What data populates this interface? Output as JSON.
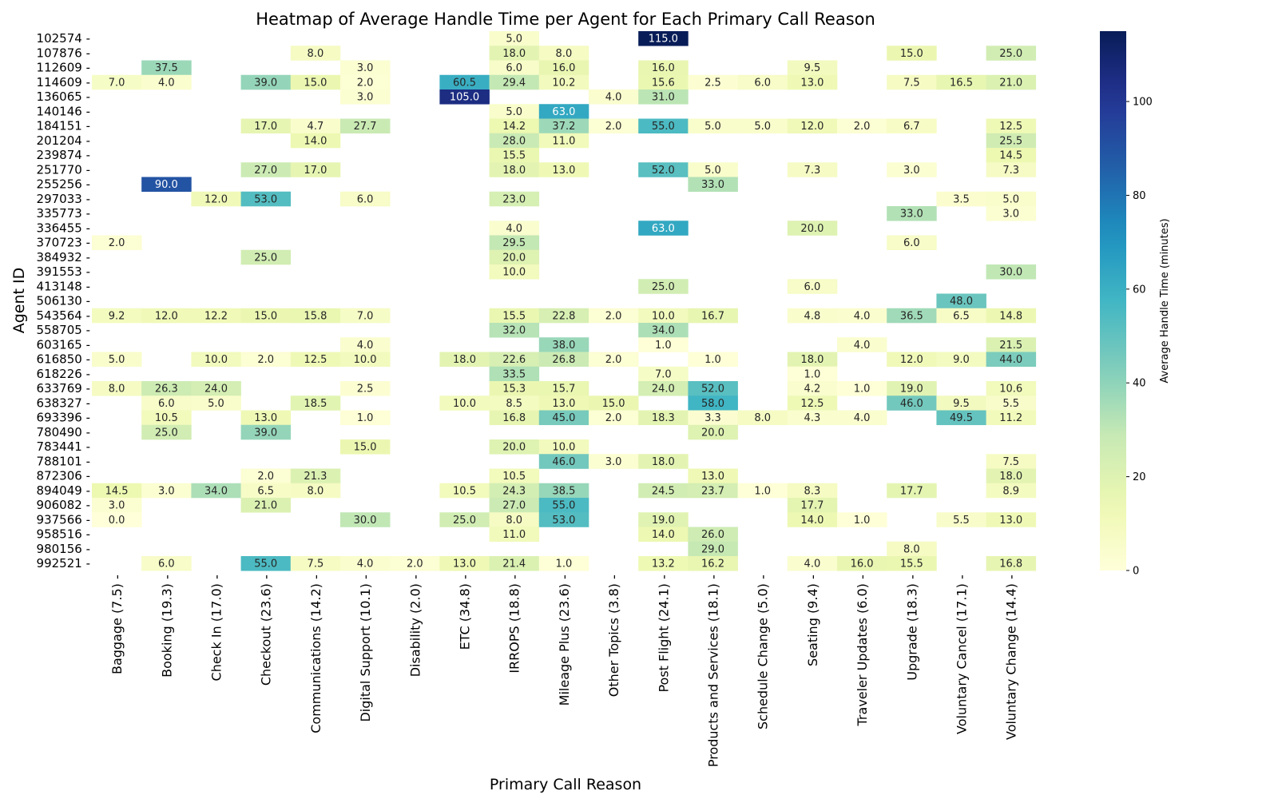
{
  "chart_data": {
    "type": "heatmap",
    "title": "Heatmap of Average Handle Time per Agent for Each Primary Call Reason",
    "xlabel": "Primary Call Reason",
    "ylabel": "Agent ID",
    "colorbar_label": "Average Handle Time (minutes)",
    "colormap": "YlGnBu",
    "value_range": [
      0,
      115
    ],
    "colorbar_ticks": [
      "0",
      "20",
      "40",
      "60",
      "80",
      "100"
    ],
    "columns": [
      "Baggage (7.5)",
      "Booking (19.3)",
      "Check In (17.0)",
      "Checkout (23.6)",
      "Communications (14.2)",
      "Digital Support (10.1)",
      "Disability (2.0)",
      "ETC (34.8)",
      "IRROPS (18.8)",
      "Mileage Plus (23.6)",
      "Other Topics (3.8)",
      "Post Flight (24.1)",
      "Products and Services (18.1)",
      "Schedule Change (5.0)",
      "Seating (9.4)",
      "Traveler Updates (6.0)",
      "Upgrade (18.3)",
      "Voluntary Cancel (17.1)",
      "Voluntary Change (14.4)"
    ],
    "rows": [
      "102574",
      "107876",
      "112609",
      "114609",
      "136065",
      "140146",
      "184151",
      "201204",
      "239874",
      "251770",
      "255256",
      "297033",
      "335773",
      "336455",
      "370723",
      "384932",
      "391553",
      "413148",
      "506130",
      "543564",
      "558705",
      "603165",
      "616850",
      "618226",
      "633769",
      "638327",
      "693396",
      "780490",
      "783441",
      "788101",
      "872306",
      "894049",
      "906082",
      "937566",
      "958516",
      "980156",
      "992521"
    ],
    "values": [
      [
        null,
        null,
        null,
        null,
        null,
        null,
        null,
        null,
        5.0,
        null,
        null,
        115.0,
        null,
        null,
        null,
        null,
        null,
        null,
        null
      ],
      [
        null,
        null,
        null,
        null,
        8.0,
        null,
        null,
        null,
        18.0,
        8.0,
        null,
        null,
        null,
        null,
        null,
        null,
        15.0,
        null,
        25.0
      ],
      [
        null,
        37.5,
        null,
        null,
        null,
        3.0,
        null,
        null,
        6.0,
        16.0,
        null,
        16.0,
        null,
        null,
        9.5,
        null,
        null,
        null,
        null
      ],
      [
        7.0,
        4.0,
        null,
        39.0,
        15.0,
        2.0,
        null,
        60.5,
        29.4,
        10.2,
        null,
        15.6,
        2.5,
        6.0,
        13.0,
        null,
        7.5,
        16.5,
        21.0
      ],
      [
        null,
        null,
        null,
        null,
        null,
        3.0,
        null,
        105.0,
        null,
        null,
        4.0,
        31.0,
        null,
        null,
        null,
        null,
        null,
        null,
        null
      ],
      [
        null,
        null,
        null,
        null,
        null,
        null,
        null,
        null,
        5.0,
        63.0,
        null,
        null,
        null,
        null,
        null,
        null,
        null,
        null,
        null
      ],
      [
        null,
        null,
        null,
        17.0,
        4.7,
        27.7,
        null,
        null,
        14.2,
        37.2,
        2.0,
        55.0,
        5.0,
        5.0,
        12.0,
        2.0,
        6.7,
        null,
        12.5
      ],
      [
        null,
        null,
        null,
        null,
        14.0,
        null,
        null,
        null,
        28.0,
        11.0,
        null,
        null,
        null,
        null,
        null,
        null,
        null,
        null,
        25.5
      ],
      [
        null,
        null,
        null,
        null,
        null,
        null,
        null,
        null,
        15.5,
        null,
        null,
        null,
        null,
        null,
        null,
        null,
        null,
        null,
        14.5
      ],
      [
        null,
        null,
        null,
        27.0,
        17.0,
        null,
        null,
        null,
        18.0,
        13.0,
        null,
        52.0,
        5.0,
        null,
        7.3,
        null,
        3.0,
        null,
        7.3
      ],
      [
        null,
        90.0,
        null,
        null,
        null,
        null,
        null,
        null,
        null,
        null,
        null,
        null,
        33.0,
        null,
        null,
        null,
        null,
        null,
        null
      ],
      [
        null,
        null,
        12.0,
        53.0,
        null,
        6.0,
        null,
        null,
        23.0,
        null,
        null,
        null,
        null,
        null,
        null,
        null,
        null,
        3.5,
        5.0
      ],
      [
        null,
        null,
        null,
        null,
        null,
        null,
        null,
        null,
        null,
        null,
        null,
        null,
        null,
        null,
        null,
        null,
        33.0,
        null,
        3.0
      ],
      [
        null,
        null,
        null,
        null,
        null,
        null,
        null,
        null,
        4.0,
        null,
        null,
        63.0,
        null,
        null,
        20.0,
        null,
        null,
        null,
        null
      ],
      [
        2.0,
        null,
        null,
        null,
        null,
        null,
        null,
        null,
        29.5,
        null,
        null,
        null,
        null,
        null,
        null,
        null,
        6.0,
        null,
        null
      ],
      [
        null,
        null,
        null,
        25.0,
        null,
        null,
        null,
        null,
        20.0,
        null,
        null,
        null,
        null,
        null,
        null,
        null,
        null,
        null,
        null
      ],
      [
        null,
        null,
        null,
        null,
        null,
        null,
        null,
        null,
        10.0,
        null,
        null,
        null,
        null,
        null,
        null,
        null,
        null,
        null,
        30.0
      ],
      [
        null,
        null,
        null,
        null,
        null,
        null,
        null,
        null,
        null,
        null,
        null,
        25.0,
        null,
        null,
        6.0,
        null,
        null,
        null,
        null
      ],
      [
        null,
        null,
        null,
        null,
        null,
        null,
        null,
        null,
        null,
        null,
        null,
        null,
        null,
        null,
        null,
        null,
        null,
        48.0,
        null
      ],
      [
        9.2,
        12.0,
        12.2,
        15.0,
        15.8,
        7.0,
        null,
        null,
        15.5,
        22.8,
        2.0,
        10.0,
        16.7,
        null,
        4.8,
        4.0,
        36.5,
        6.5,
        14.8
      ],
      [
        null,
        null,
        null,
        null,
        null,
        null,
        null,
        null,
        32.0,
        null,
        null,
        34.0,
        null,
        null,
        null,
        null,
        null,
        null,
        null
      ],
      [
        null,
        null,
        null,
        null,
        null,
        4.0,
        null,
        null,
        null,
        38.0,
        null,
        1.0,
        null,
        null,
        null,
        4.0,
        null,
        null,
        21.5
      ],
      [
        5.0,
        null,
        10.0,
        2.0,
        12.5,
        10.0,
        null,
        18.0,
        22.6,
        26.8,
        2.0,
        null,
        1.0,
        null,
        18.0,
        null,
        12.0,
        9.0,
        44.0
      ],
      [
        null,
        null,
        null,
        null,
        null,
        null,
        null,
        null,
        33.5,
        null,
        null,
        7.0,
        null,
        null,
        1.0,
        null,
        null,
        null,
        null
      ],
      [
        8.0,
        26.3,
        24.0,
        null,
        null,
        2.5,
        null,
        null,
        15.3,
        15.7,
        null,
        24.0,
        52.0,
        null,
        4.2,
        1.0,
        19.0,
        null,
        10.6
      ],
      [
        null,
        6.0,
        5.0,
        null,
        18.5,
        null,
        null,
        10.0,
        8.5,
        13.0,
        15.0,
        null,
        58.0,
        null,
        12.5,
        null,
        46.0,
        9.5,
        5.5
      ],
      [
        null,
        10.5,
        null,
        13.0,
        null,
        1.0,
        null,
        null,
        16.8,
        45.0,
        2.0,
        18.3,
        3.3,
        8.0,
        4.3,
        4.0,
        null,
        49.5,
        11.2
      ],
      [
        null,
        25.0,
        null,
        39.0,
        null,
        null,
        null,
        null,
        null,
        null,
        null,
        null,
        20.0,
        null,
        null,
        null,
        null,
        null,
        null
      ],
      [
        null,
        null,
        null,
        null,
        null,
        15.0,
        null,
        null,
        20.0,
        10.0,
        null,
        null,
        null,
        null,
        null,
        null,
        null,
        null,
        null
      ],
      [
        null,
        null,
        null,
        null,
        null,
        null,
        null,
        null,
        null,
        46.0,
        3.0,
        18.0,
        null,
        null,
        null,
        null,
        null,
        null,
        7.5
      ],
      [
        null,
        null,
        null,
        2.0,
        21.3,
        null,
        null,
        null,
        10.5,
        null,
        null,
        null,
        13.0,
        null,
        null,
        null,
        null,
        null,
        18.0
      ],
      [
        14.5,
        3.0,
        34.0,
        6.5,
        8.0,
        null,
        null,
        10.5,
        24.3,
        38.5,
        null,
        24.5,
        23.7,
        1.0,
        8.3,
        null,
        17.7,
        null,
        8.9
      ],
      [
        3.0,
        null,
        null,
        21.0,
        null,
        null,
        null,
        null,
        27.0,
        55.0,
        null,
        null,
        null,
        null,
        17.7,
        null,
        null,
        null,
        null
      ],
      [
        0.0,
        null,
        null,
        null,
        null,
        30.0,
        null,
        25.0,
        8.0,
        53.0,
        null,
        19.0,
        null,
        null,
        14.0,
        1.0,
        null,
        5.5,
        13.0
      ],
      [
        null,
        null,
        null,
        null,
        null,
        null,
        null,
        null,
        11.0,
        null,
        null,
        14.0,
        26.0,
        null,
        null,
        null,
        null,
        null,
        null
      ],
      [
        null,
        null,
        null,
        null,
        null,
        null,
        null,
        null,
        null,
        null,
        null,
        null,
        29.0,
        null,
        null,
        null,
        8.0,
        null,
        null
      ],
      [
        null,
        6.0,
        null,
        55.0,
        7.5,
        4.0,
        2.0,
        13.0,
        21.4,
        1.0,
        null,
        13.2,
        16.2,
        null,
        4.0,
        16.0,
        15.5,
        null,
        16.8
      ]
    ]
  }
}
